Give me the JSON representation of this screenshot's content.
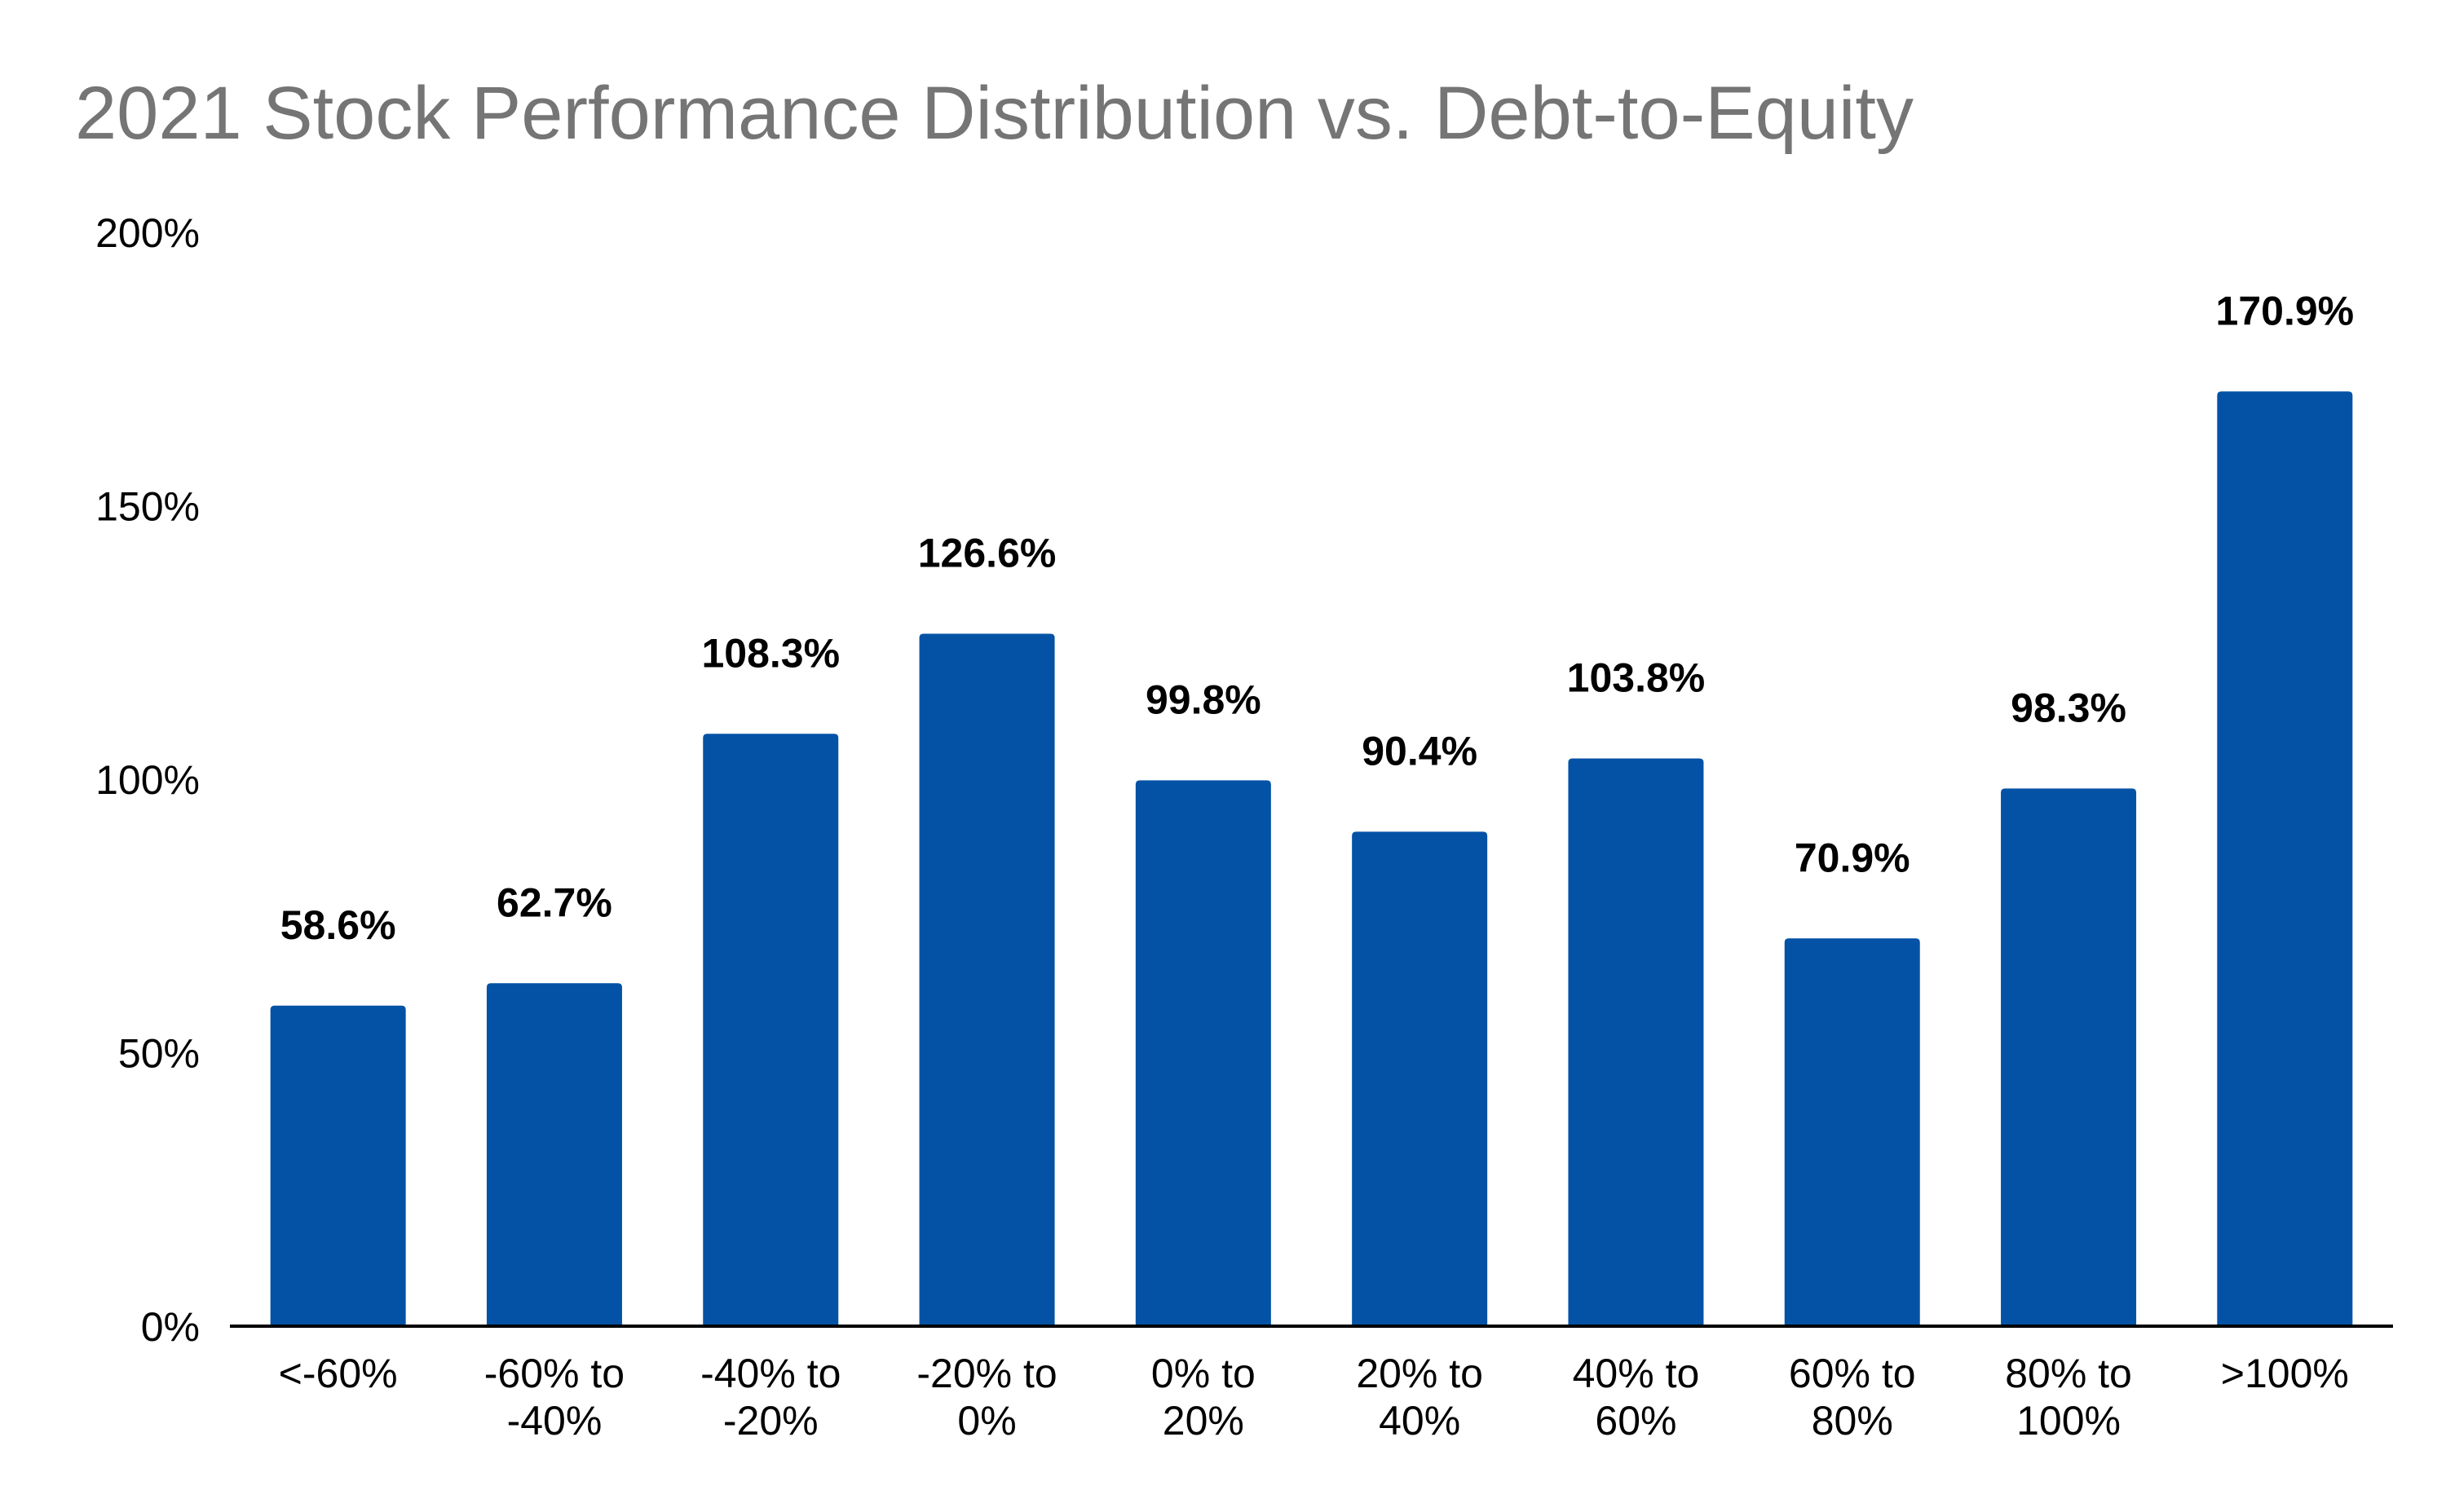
{
  "chart_data": {
    "type": "bar",
    "title": "2021 Stock Performance Distribution vs. Debt-to-Equity",
    "xlabel": "",
    "ylabel": "",
    "categories": [
      [
        "<-60%"
      ],
      [
        "-60% to",
        "-40%"
      ],
      [
        "-40% to",
        "-20%"
      ],
      [
        "-20% to",
        "0%"
      ],
      [
        "0% to",
        "20%"
      ],
      [
        "20% to",
        "40%"
      ],
      [
        "40% to",
        "60%"
      ],
      [
        "60% to",
        "80%"
      ],
      [
        "80% to",
        "100%"
      ],
      [
        ">100%"
      ]
    ],
    "values": [
      58.6,
      62.7,
      108.3,
      126.6,
      99.8,
      90.4,
      103.8,
      70.9,
      98.3,
      170.9
    ],
    "data_labels": [
      "58.6%",
      "62.7%",
      "108.3%",
      "126.6%",
      "99.8%",
      "90.4%",
      "103.8%",
      "70.9%",
      "98.3%",
      "170.9%"
    ],
    "ylim": [
      0,
      200
    ],
    "y_ticks": [
      {
        "value": 0,
        "label": "0%"
      },
      {
        "value": 50,
        "label": "50%"
      },
      {
        "value": 100,
        "label": "100%"
      },
      {
        "value": 150,
        "label": "150%"
      },
      {
        "value": 200,
        "label": "200%"
      }
    ],
    "grid": false,
    "legend": "none",
    "bar_color": "#0352a6",
    "axis_color": "#000000",
    "title_color": "#757575"
  }
}
